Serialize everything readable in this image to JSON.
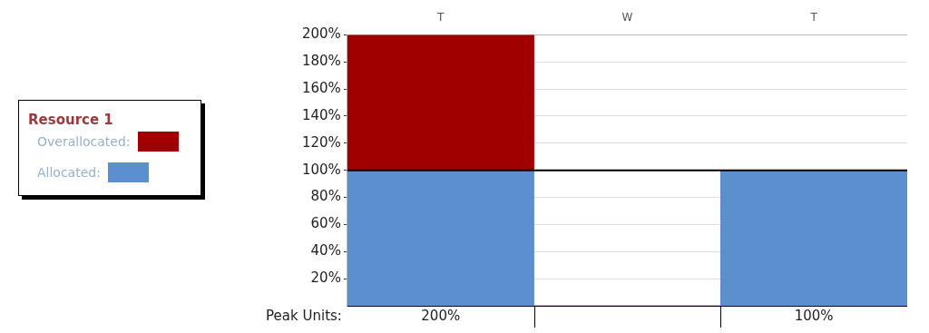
{
  "chart_data": {
    "type": "bar",
    "stacked": true,
    "categories": [
      "T",
      "W",
      "T"
    ],
    "series": [
      {
        "name": "Allocated:",
        "color": "#5b8fd0",
        "values": [
          100,
          0,
          100
        ]
      },
      {
        "name": "Overallocated:",
        "color": "#a00000",
        "values": [
          100,
          0,
          0
        ]
      }
    ],
    "ylim": [
      0,
      200
    ],
    "yticks": [
      {
        "value": 20,
        "label": "20%"
      },
      {
        "value": 40,
        "label": "40%"
      },
      {
        "value": 60,
        "label": "60%"
      },
      {
        "value": 80,
        "label": "80%"
      },
      {
        "value": 100,
        "label": "100%"
      },
      {
        "value": 120,
        "label": "120%"
      },
      {
        "value": 140,
        "label": "140%"
      },
      {
        "value": 160,
        "label": "160%"
      },
      {
        "value": 180,
        "label": "180%"
      },
      {
        "value": 200,
        "label": "200%"
      }
    ],
    "grid": "y",
    "legend": "left",
    "legend_title": "Resource 1",
    "ref_lines": [
      {
        "axis": "y",
        "value": 100,
        "color": "#000000"
      }
    ],
    "totals": [
      "200%",
      null,
      "100%"
    ],
    "annotations": [
      "Peak Units:"
    ]
  }
}
